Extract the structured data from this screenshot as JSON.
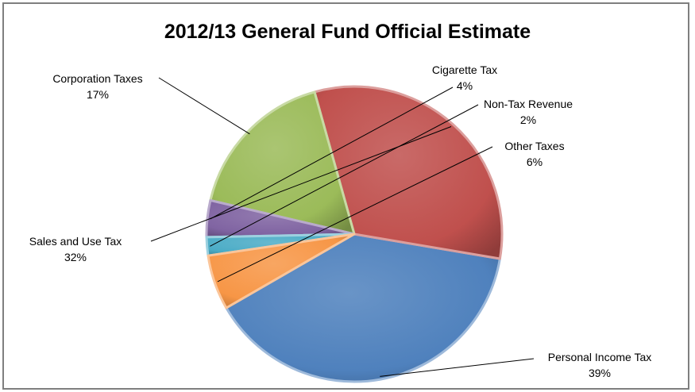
{
  "chart_data": {
    "type": "pie",
    "title": "2012/13 General Fund Official Estimate",
    "slices": [
      {
        "label": "Personal Income Tax",
        "value": 39,
        "percent_label": "39%",
        "color": "#4f81bd"
      },
      {
        "label": "Sales and Use Tax",
        "value": 32,
        "percent_label": "32%",
        "color": "#c0504d"
      },
      {
        "label": "Corporation Taxes",
        "value": 17,
        "percent_label": "17%",
        "color": "#9bbb59"
      },
      {
        "label": "Cigarette Tax",
        "value": 4,
        "percent_label": "4%",
        "color": "#8064a2"
      },
      {
        "label": "Non-Tax Revenue",
        "value": 2,
        "percent_label": "2%",
        "color": "#4bacc6"
      },
      {
        "label": "Other Taxes",
        "value": 6,
        "percent_label": "6%",
        "color": "#f79646"
      }
    ],
    "legend": "none",
    "labels": "outside with leader lines"
  }
}
